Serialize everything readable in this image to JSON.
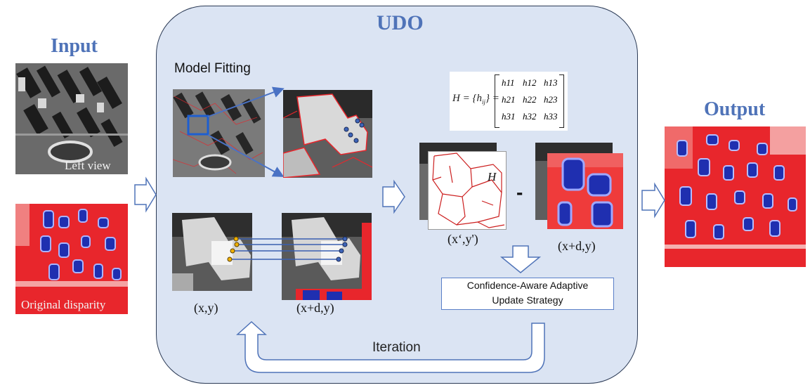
{
  "labels": {
    "input": "Input",
    "output": "Output",
    "udo": "UDO",
    "model_fitting": "Model Fitting",
    "left_view": "Left view",
    "original_disparity": "Original disparity",
    "xy": "(x,y)",
    "xdy_left": "(x+d,y)",
    "xprime": "(x‘,y')",
    "xdy_right": "(x+d,y)",
    "minus": "-",
    "update_strategy_line1": "Confidence-Aware Adaptive",
    "update_strategy_line2": "Update Strategy",
    "iteration": "Iteration",
    "H_label": "H"
  },
  "matrix": {
    "lhs": "H = {h",
    "lhs_sub": "ij",
    "rows": [
      [
        "h11",
        "h12",
        "h13"
      ],
      [
        "h21",
        "h22",
        "h23"
      ],
      [
        "h31",
        "h32",
        "h33"
      ]
    ]
  },
  "colors": {
    "title_blue": "#4f73b8",
    "panel_fill": "#dbe4f3",
    "panel_stroke": "#2b3a55",
    "arrow_fill": "#ffffff",
    "arrow_stroke": "#4f73b8",
    "disparity_red": "#e8262c",
    "disparity_blue": "#1f2fb0"
  }
}
